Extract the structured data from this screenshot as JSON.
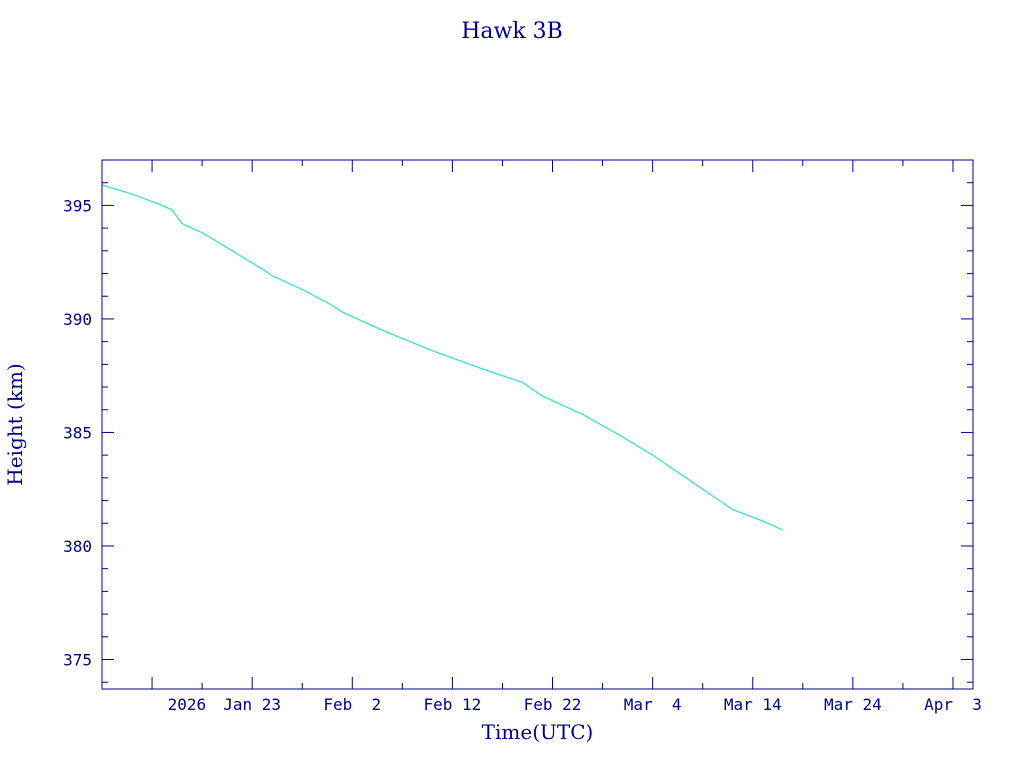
{
  "chart_data": {
    "type": "line",
    "title": "Hawk 3B",
    "xlabel": "Time(UTC)",
    "ylabel": "Height (km)",
    "x_tick_labels": [
      "2026",
      "Jan 23",
      "Feb  2",
      "Feb 12",
      "Feb 22",
      "Mar  4",
      "Mar 14",
      "Mar 24",
      "Apr  3"
    ],
    "y_tick_labels": [
      "375",
      "380",
      "385",
      "390",
      "395"
    ],
    "xlim": [
      "2026-01-08",
      "2026-04-05"
    ],
    "ylim": [
      373.7,
      397.0
    ],
    "grid": false,
    "legend": "none",
    "series": [
      {
        "color": "#40e0d0",
        "points": [
          [
            "2026-01-08",
            395.9
          ],
          [
            "2026-01-11",
            395.5
          ],
          [
            "2026-01-14",
            395.0
          ],
          [
            "2026-01-15",
            394.8
          ],
          [
            "2026-01-16",
            394.2
          ],
          [
            "2026-01-18",
            393.8
          ],
          [
            "2026-01-21",
            393.0
          ],
          [
            "2026-01-24",
            392.2
          ],
          [
            "2026-01-25",
            391.9
          ],
          [
            "2026-01-28",
            391.3
          ],
          [
            "2026-01-31",
            390.6
          ],
          [
            "2026-02-01",
            390.3
          ],
          [
            "2026-02-05",
            389.5
          ],
          [
            "2026-02-10",
            388.6
          ],
          [
            "2026-02-15",
            387.8
          ],
          [
            "2026-02-19",
            387.2
          ],
          [
            "2026-02-20",
            386.9
          ],
          [
            "2026-02-21",
            386.6
          ],
          [
            "2026-02-25",
            385.8
          ],
          [
            "2026-03-01",
            384.8
          ],
          [
            "2026-03-04",
            384.0
          ],
          [
            "2026-03-07",
            383.1
          ],
          [
            "2026-03-10",
            382.2
          ],
          [
            "2026-03-12",
            381.6
          ],
          [
            "2026-03-15",
            381.1
          ],
          [
            "2026-03-17",
            380.7
          ]
        ]
      }
    ]
  },
  "colors": {
    "frame": "#00008b",
    "text": "#00008b",
    "line": "#40e0d0"
  }
}
